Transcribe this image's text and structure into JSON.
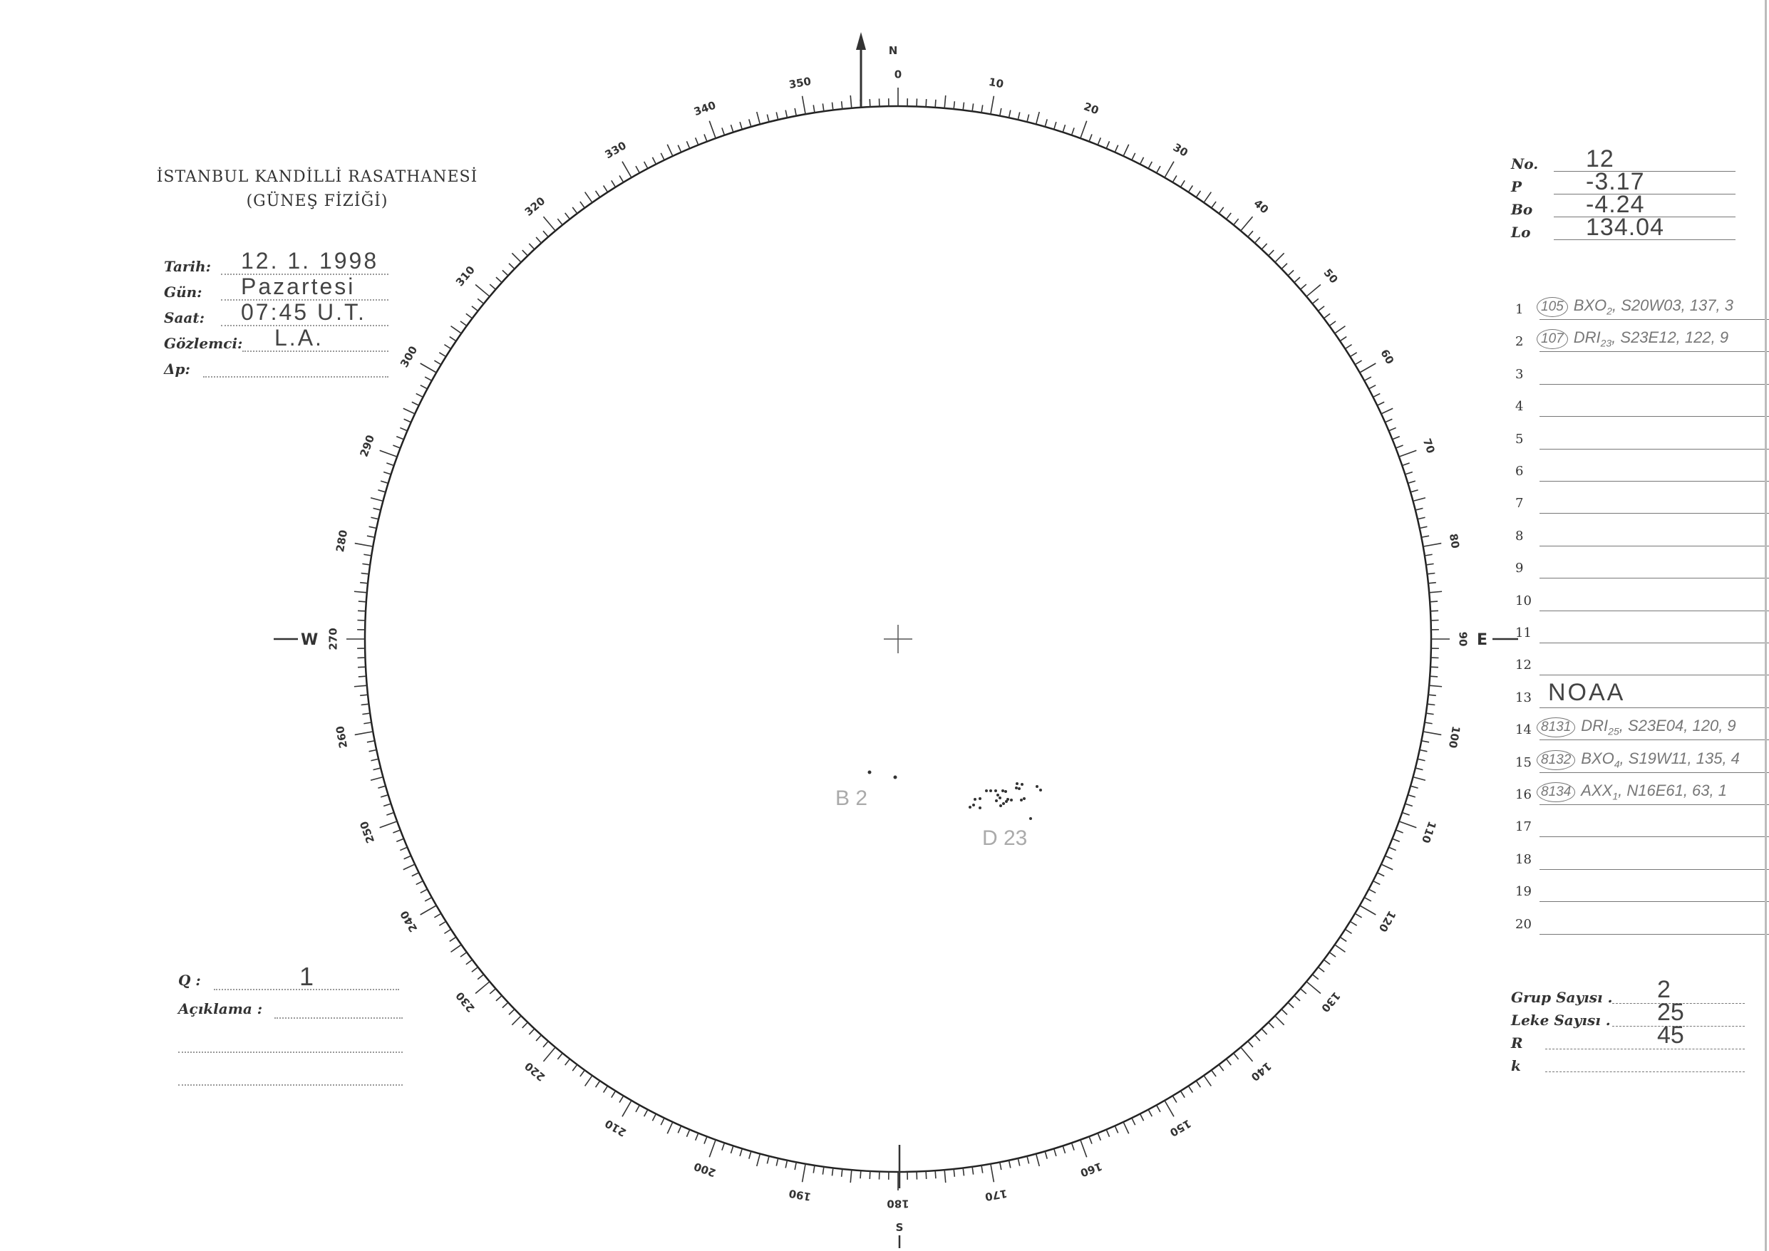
{
  "header": {
    "title": "İSTANBUL KANDİLLİ RASATHANESİ",
    "subtitle": "(GÜNEŞ FİZİĞİ)"
  },
  "observation": {
    "fields": [
      {
        "label": "Tarih:",
        "value": "12. 1. 1998"
      },
      {
        "label": "Gün:",
        "value": "Pazartesi"
      },
      {
        "label": "Saat:",
        "value": "07:45  U.T."
      },
      {
        "label": "Gözlemci:",
        "value": "L.A."
      },
      {
        "label": "Δp:",
        "value": ""
      }
    ]
  },
  "parameters": [
    {
      "label": "No.",
      "value": "12"
    },
    {
      "label": "P",
      "value": "-3.17"
    },
    {
      "label": "Bo",
      "value": "-4.24"
    },
    {
      "label": "Lo",
      "value": "134.04"
    }
  ],
  "groups": [
    {
      "n": "1",
      "id": "105",
      "cls": "BXO",
      "sub": "2",
      "rest": ", S20W03, 137, 3"
    },
    {
      "n": "2",
      "id": "107",
      "cls": "DRI",
      "sub": "23",
      "rest": ", S23E12, 122, 9"
    },
    {
      "n": "3"
    },
    {
      "n": "4"
    },
    {
      "n": "5"
    },
    {
      "n": "6"
    },
    {
      "n": "7"
    },
    {
      "n": "8"
    },
    {
      "n": "9"
    },
    {
      "n": "10"
    },
    {
      "n": "11"
    },
    {
      "n": "12"
    },
    {
      "n": "13",
      "note": "NOAA"
    },
    {
      "n": "14",
      "id": "8131",
      "cls": "DRI",
      "sub": "25",
      "rest": ", S23E04, 120, 9"
    },
    {
      "n": "15",
      "id": "8132",
      "cls": "BXO",
      "sub": "4",
      "rest": ", S19W11, 135, 4"
    },
    {
      "n": "16",
      "id": "8134",
      "cls": "AXX",
      "sub": "1",
      "rest": ", N16E61, 63, 1"
    },
    {
      "n": "17"
    },
    {
      "n": "18"
    },
    {
      "n": "19"
    },
    {
      "n": "20"
    }
  ],
  "quality": {
    "label": "Q :",
    "value": "1",
    "remark_label": "Açıklama :"
  },
  "totals": [
    {
      "label": "Grup Sayısı .",
      "value": "2"
    },
    {
      "label": "Leke Sayısı .",
      "value": "25"
    },
    {
      "label": "R",
      "value": "45"
    },
    {
      "label": "k",
      "value": ""
    }
  ],
  "compass": {
    "north": "N",
    "south": "S",
    "east": "E",
    "west": "W",
    "scale_labels": [
      "0",
      "10",
      "20",
      "30",
      "40",
      "50",
      "60",
      "70",
      "80",
      "90",
      "100",
      "110",
      "120",
      "130",
      "140",
      "150",
      "160",
      "170",
      "180",
      "190",
      "200",
      "210",
      "220",
      "230",
      "240",
      "250",
      "260",
      "270",
      "280",
      "290",
      "300",
      "310",
      "320",
      "330",
      "340",
      "350"
    ]
  },
  "disk_groups": [
    {
      "label": "B 2"
    },
    {
      "label": "D 23"
    }
  ]
}
